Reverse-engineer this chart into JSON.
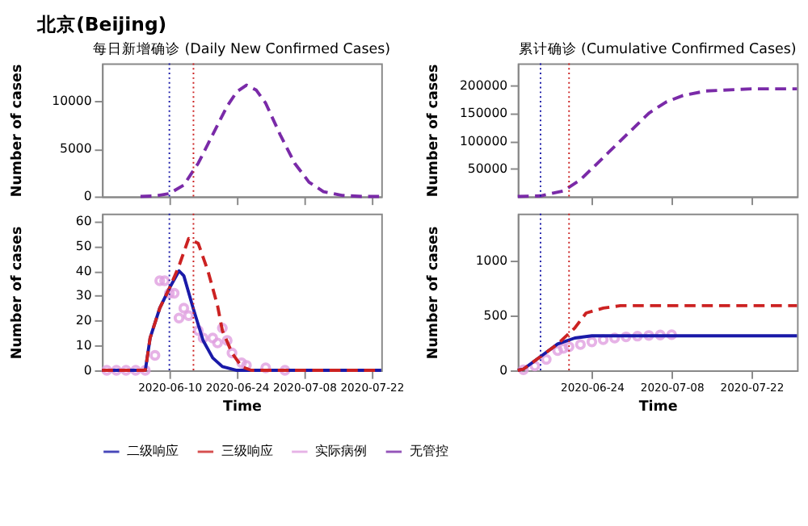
{
  "chart_data": [
    {
      "type": "line",
      "title": "每日新增确诊 (Daily New Confirmed Cases)",
      "ylabel": "Number of cases",
      "annotations": [
        "北京(Beijing)"
      ],
      "xlim": [
        "2020-05-27",
        "2020-07-24"
      ],
      "xticks": [
        "2020-06-10",
        "2020-06-24",
        "2020-07-08",
        "2020-07-22"
      ],
      "ylim": [
        0,
        14000
      ],
      "yticks": [
        0,
        5000,
        10000
      ],
      "tick_labels": "y",
      "grid": false,
      "ref_lines": [
        {
          "axis": "x",
          "value": "2020-06-10",
          "color": "#1a1aa8",
          "line_style": "dotted"
        },
        {
          "axis": "x",
          "value": "2020-06-15",
          "color": "#cc2222",
          "line_style": "dotted"
        }
      ],
      "series": [
        {
          "name": "无管控",
          "line_style": "dashed",
          "color": "#7a2aa8",
          "x": [
            "2020-06-04",
            "2020-06-07",
            "2020-06-10",
            "2020-06-13",
            "2020-06-16",
            "2020-06-19",
            "2020-06-22",
            "2020-06-24",
            "2020-06-26",
            "2020-06-28",
            "2020-06-30",
            "2020-07-03",
            "2020-07-06",
            "2020-07-09",
            "2020-07-12",
            "2020-07-16",
            "2020-07-20",
            "2020-07-24"
          ],
          "values": [
            0,
            50,
            300,
            1200,
            3500,
            6500,
            9500,
            11000,
            11700,
            11200,
            9800,
            6500,
            3500,
            1500,
            500,
            100,
            0,
            0
          ]
        }
      ]
    },
    {
      "type": "line",
      "title": "累计确诊 (Cumulative Confirmed Cases)",
      "ylabel": "Number of cases",
      "xlim": [
        "2020-06-11",
        "2020-07-30"
      ],
      "xticks": [
        "2020-06-24",
        "2020-07-08",
        "2020-07-22"
      ],
      "ylim": [
        0,
        240000
      ],
      "yticks": [
        50000,
        100000,
        150000,
        200000
      ],
      "tick_labels": "y",
      "grid": false,
      "ref_lines": [
        {
          "axis": "x",
          "value": "2020-06-15",
          "color": "#1a1aa8",
          "line_style": "dotted"
        },
        {
          "axis": "x",
          "value": "2020-06-20",
          "color": "#cc2222",
          "line_style": "dotted"
        }
      ],
      "series": [
        {
          "name": "无管控",
          "line_style": "dashed",
          "color": "#7a2aa8",
          "x": [
            "2020-06-11",
            "2020-06-15",
            "2020-06-19",
            "2020-06-22",
            "2020-06-24",
            "2020-06-27",
            "2020-06-29",
            "2020-07-02",
            "2020-07-04",
            "2020-07-07",
            "2020-07-10",
            "2020-07-14",
            "2020-07-22",
            "2020-07-30"
          ],
          "values": [
            0,
            1000,
            10000,
            30000,
            50000,
            80000,
            100000,
            130000,
            150000,
            170000,
            182000,
            190000,
            194000,
            194000
          ]
        }
      ]
    },
    {
      "type": "line",
      "xlabel": "Time",
      "ylabel": "Number of cases",
      "xlim": [
        "2020-05-27",
        "2020-07-24"
      ],
      "xticks": [
        "2020-06-10",
        "2020-06-24",
        "2020-07-08",
        "2020-07-22"
      ],
      "ylim": [
        0,
        63
      ],
      "yticks": [
        0,
        10,
        20,
        30,
        40,
        50,
        60
      ],
      "grid": false,
      "legend": "bottom",
      "ref_lines": [
        {
          "axis": "x",
          "value": "2020-06-10",
          "color": "#1a1aa8",
          "line_style": "dotted"
        },
        {
          "axis": "x",
          "value": "2020-06-15",
          "color": "#cc2222",
          "line_style": "dotted"
        }
      ],
      "series": [
        {
          "name": "实际病例",
          "type": "scatter",
          "color": "#e0a0e0",
          "x": [
            "2020-05-28",
            "2020-05-30",
            "2020-06-01",
            "2020-06-03",
            "2020-06-05",
            "2020-06-07",
            "2020-06-08",
            "2020-06-09",
            "2020-06-10",
            "2020-06-11",
            "2020-06-12",
            "2020-06-13",
            "2020-06-14",
            "2020-06-16",
            "2020-06-17",
            "2020-06-19",
            "2020-06-20",
            "2020-06-21",
            "2020-06-22",
            "2020-06-23",
            "2020-06-25",
            "2020-06-26",
            "2020-06-30",
            "2020-07-04"
          ],
          "values": [
            0,
            0,
            0,
            0,
            0,
            6,
            36,
            36,
            31,
            31,
            21,
            25,
            22,
            16,
            13,
            13,
            11,
            17,
            12,
            7,
            3,
            2,
            1,
            0
          ]
        },
        {
          "name": "二级响应",
          "line_style": "solid",
          "color": "#1a1aa8",
          "x": [
            "2020-05-27",
            "2020-06-05",
            "2020-06-06",
            "2020-06-08",
            "2020-06-10",
            "2020-06-12",
            "2020-06-13",
            "2020-06-15",
            "2020-06-17",
            "2020-06-19",
            "2020-06-21",
            "2020-06-24",
            "2020-07-24"
          ],
          "values": [
            0,
            0,
            13,
            25,
            33,
            40,
            38,
            24.6,
            12,
            5,
            1.5,
            0,
            0
          ]
        },
        {
          "name": "三级响应",
          "line_style": "dashed",
          "color": "#cc2222",
          "x": [
            "2020-05-27",
            "2020-06-05",
            "2020-06-06",
            "2020-06-08",
            "2020-06-10",
            "2020-06-12",
            "2020-06-14",
            "2020-06-16",
            "2020-06-18",
            "2020-06-20",
            "2020-06-21",
            "2020-06-23",
            "2020-06-25",
            "2020-06-27",
            "2020-07-24"
          ],
          "values": [
            0,
            0,
            13,
            25,
            33,
            42,
            53,
            51,
            40,
            26,
            16,
            7,
            1.5,
            0,
            0
          ]
        }
      ]
    },
    {
      "type": "line",
      "xlabel": "Time",
      "ylabel": "Number of cases",
      "xlim": [
        "2020-06-11",
        "2020-07-30"
      ],
      "xticks": [
        "2020-06-24",
        "2020-07-08",
        "2020-07-22"
      ],
      "ylim": [
        0,
        1430
      ],
      "yticks": [
        0,
        500,
        1000
      ],
      "grid": false,
      "ref_lines": [
        {
          "axis": "x",
          "value": "2020-06-15",
          "color": "#1a1aa8",
          "line_style": "dotted"
        },
        {
          "axis": "x",
          "value": "2020-06-20",
          "color": "#cc2222",
          "line_style": "dotted"
        }
      ],
      "series": [
        {
          "name": "实际病例",
          "type": "scatter",
          "color": "#e0a0e0",
          "x": [
            "2020-06-12",
            "2020-06-14",
            "2020-06-16",
            "2020-06-18",
            "2020-06-19",
            "2020-06-20",
            "2020-06-22",
            "2020-06-24",
            "2020-06-26",
            "2020-06-28",
            "2020-06-30",
            "2020-07-02",
            "2020-07-04",
            "2020-07-06",
            "2020-07-08"
          ],
          "values": [
            5,
            40,
            100,
            180,
            200,
            215,
            235,
            260,
            280,
            295,
            305,
            312,
            318,
            322,
            325
          ]
        },
        {
          "name": "二级响应",
          "line_style": "solid",
          "color": "#1a1aa8",
          "x": [
            "2020-06-11",
            "2020-06-12",
            "2020-06-15",
            "2020-06-18",
            "2020-06-21",
            "2020-06-24",
            "2020-07-30"
          ],
          "values": [
            0,
            11,
            125,
            240,
            295,
            315,
            315
          ]
        },
        {
          "name": "三级响应",
          "line_style": "dashed",
          "color": "#cc2222",
          "x": [
            "2020-06-11",
            "2020-06-12",
            "2020-06-15",
            "2020-06-18",
            "2020-06-21",
            "2020-06-23",
            "2020-06-26",
            "2020-06-29",
            "2020-07-30"
          ],
          "values": [
            0,
            11,
            125,
            240,
            386,
            523,
            568,
            590,
            590
          ]
        }
      ]
    }
  ]
}
